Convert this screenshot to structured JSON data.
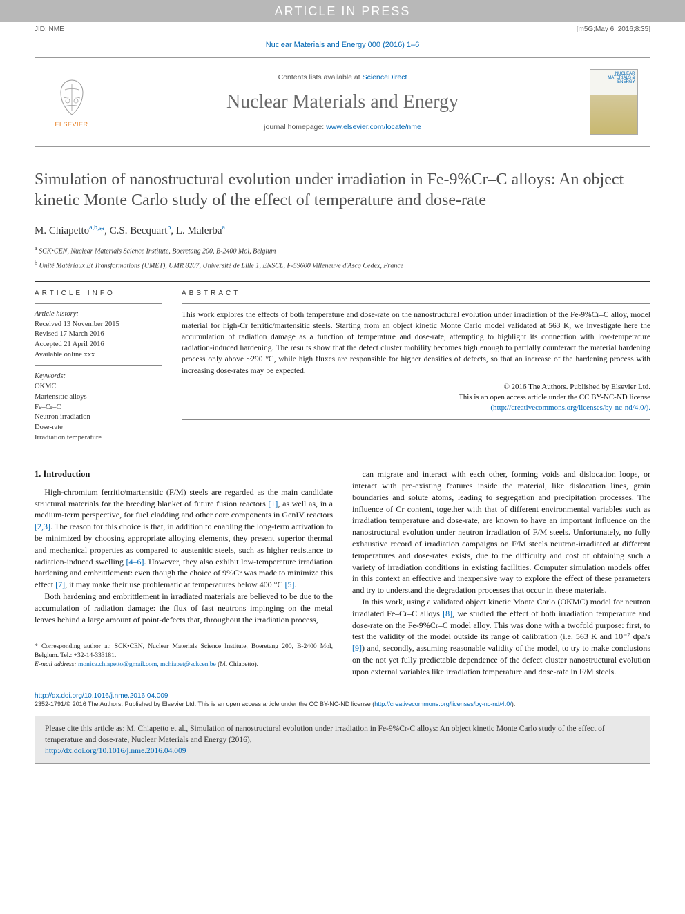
{
  "topbar": {
    "text": "ARTICLE IN PRESS"
  },
  "jid": {
    "left": "JID: NME",
    "right": "[m5G;May 6, 2016;8:35]"
  },
  "citation_top": "Nuclear Materials and Energy 000 (2016) 1–6",
  "journal_box": {
    "lists_prefix": "Contents lists available at ",
    "lists_link": "ScienceDirect",
    "journal_name": "Nuclear Materials and Energy",
    "homepage_prefix": "journal homepage: ",
    "homepage_link": "www.elsevier.com/locate/nme",
    "publisher_label": "ELSEVIER",
    "cover_text_top": "NUCLEAR MATERIALS & ENERGY"
  },
  "title": "Simulation of nanostructural evolution under irradiation in Fe-9%Cr–C alloys: An object kinetic Monte Carlo study of the effect of temperature and dose-rate",
  "authors_html": "M. Chiapetto<sup>a,b,</sup><span class='star'>*</span>, C.S. Becquart<sup>b</sup>, L. Malerba<sup>a</sup>",
  "affiliations": [
    "a SCK•CEN, Nuclear Materials Science Institute, Boeretang 200, B-2400 Mol, Belgium",
    "b Unité Matériaux Et Transformations (UMET), UMR 8207, Université de Lille 1, ENSCL, F-59600 Villeneuve d'Ascq Cedex, France"
  ],
  "info": {
    "label": "ARTICLE INFO",
    "history_hdr": "Article history:",
    "history": [
      "Received 13 November 2015",
      "Revised 17 March 2016",
      "Accepted 21 April 2016",
      "Available online xxx"
    ],
    "keywords_hdr": "Keywords:",
    "keywords": [
      "OKMC",
      "Martensitic alloys",
      "Fe–Cr–C",
      "Neutron irradiation",
      "Dose-rate",
      "Irradiation temperature"
    ]
  },
  "abstract": {
    "label": "ABSTRACT",
    "text": "This work explores the effects of both temperature and dose-rate on the nanostructural evolution under irradiation of the Fe-9%Cr–C alloy, model material for high-Cr ferritic/martensitic steels. Starting from an object kinetic Monte Carlo model validated at 563 K, we investigate here the accumulation of radiation damage as a function of temperature and dose-rate, attempting to highlight its connection with low-temperature radiation-induced hardening. The results show that the defect cluster mobility becomes high enough to partially counteract the material hardening process only above ~290 °C, while high fluxes are responsible for higher densities of defects, so that an increase of the hardening process with increasing dose-rates may be expected.",
    "copyright_line1": "© 2016 The Authors. Published by Elsevier Ltd.",
    "copyright_line2": "This is an open access article under the CC BY-NC-ND license",
    "license_link": "(http://creativecommons.org/licenses/by-nc-nd/4.0/)."
  },
  "body": {
    "section_heading": "1. Introduction",
    "p1": "High-chromium ferritic/martensitic (F/M) steels are regarded as the main candidate structural materials for the breeding blanket of future fusion reactors [1], as well as, in a medium-term perspective, for fuel cladding and other core components in GenIV reactors [2,3]. The reason for this choice is that, in addition to enabling the long-term activation to be minimized by choosing appropriate alloying elements, they present superior thermal and mechanical properties as compared to austenitic steels, such as higher resistance to radiation-induced swelling [4–6]. However, they also exhibit low-temperature irradiation hardening and embrittlement: even though the choice of 9%Cr was made to minimize this effect [7], it may make their use problematic at temperatures below 400 °C [5].",
    "p2": "Both hardening and embrittlement in irradiated materials are believed to be due to the accumulation of radiation damage: the flux of fast neutrons impinging on the metal leaves behind a large amount of point-defects that, throughout the irradiation process,",
    "p3": "can migrate and interact with each other, forming voids and dislocation loops, or interact with pre-existing features inside the material, like dislocation lines, grain boundaries and solute atoms, leading to segregation and precipitation processes. The influence of Cr content, together with that of different environmental variables such as irradiation temperature and dose-rate, are known to have an important influence on the nanostructural evolution under neutron irradiation of F/M steels. Unfortunately, no fully exhaustive record of irradiation campaigns on F/M steels neutron-irradiated at different temperatures and dose-rates exists, due to the difficulty and cost of obtaining such a variety of irradiation conditions in existing facilities. Computer simulation models offer in this context an effective and inexpensive way to explore the effect of these parameters and try to understand the degradation processes that occur in these materials.",
    "p4": "In this work, using a validated object kinetic Monte Carlo (OKMC) model for neutron irradiated Fe–Cr–C alloys [8], we studied the effect of both irradiation temperature and dose-rate on the Fe-9%Cr–C model alloy. This was done with a twofold purpose: first, to test the validity of the model outside its range of calibration (i.e. 563 K and 10⁻⁷ dpa/s [9]) and, secondly, assuming reasonable validity of the model, to try to make conclusions on the not yet fully predictable dependence of the defect cluster nanostructural evolution upon external variables like irradiation temperature and dose-rate in F/M steels."
  },
  "footnote": {
    "corr": "* Corresponding author at: SCK•CEN, Nuclear Materials Science Institute, Boeretang 200, B-2400 Mol, Belgium. Tel.: +32-14-333181.",
    "email_label": "E-mail address: ",
    "emails": "monica.chiapetto@gmail.com, mchiapet@sckcen.be",
    "email_suffix": " (M. Chiapetto)."
  },
  "footer": {
    "doi": "http://dx.doi.org/10.1016/j.nme.2016.04.009",
    "issn_line": "2352-1791/© 2016 The Authors. Published by Elsevier Ltd. This is an open access article under the CC BY-NC-ND license (",
    "issn_link": "http://creativecommons.org/licenses/by-nc-nd/4.0/",
    "issn_close": ")."
  },
  "cite_box": {
    "text": "Please cite this article as: M. Chiapetto et al., Simulation of nanostructural evolution under irradiation in Fe-9%Cr-C alloys: An object kinetic Monte Carlo study of the effect of temperature and dose-rate, Nuclear Materials and Energy (2016), ",
    "link": "http://dx.doi.org/10.1016/j.nme.2016.04.009"
  },
  "colors": {
    "link": "#0066b3",
    "topbar_bg": "#b8b8b8",
    "elsevier_orange": "#e67817",
    "citebox_bg": "#e8e8e8"
  },
  "refs": [
    "[1]",
    "[2,3]",
    "[4–6]",
    "[7]",
    "[5]",
    "[8]",
    "[9]"
  ]
}
